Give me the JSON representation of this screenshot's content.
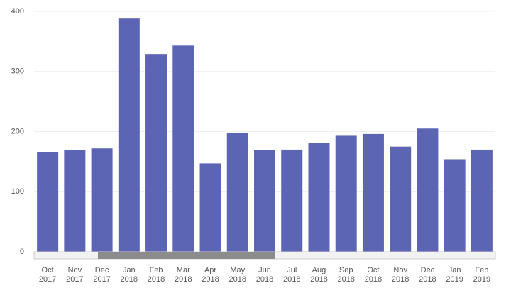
{
  "chart_data": {
    "type": "bar",
    "categories": [
      "Oct\n2017",
      "Nov\n2017",
      "Dec\n2017",
      "Jan\n2018",
      "Feb\n2018",
      "Mar\n2018",
      "Apr\n2018",
      "May\n2018",
      "Jun\n2018",
      "Jul\n2018",
      "Aug\n2018",
      "Sep\n2018",
      "Oct\n2018",
      "Nov\n2018",
      "Dec\n2018",
      "Jan\n2019",
      "Feb\n2019"
    ],
    "values": [
      166,
      169,
      172,
      388,
      329,
      343,
      147,
      198,
      169,
      170,
      181,
      193,
      196,
      175,
      205,
      154,
      170
    ],
    "color": "#5c64b4",
    "ylim": [
      0,
      400
    ],
    "yticks": [
      0,
      100,
      200,
      300,
      400
    ],
    "grid": true
  }
}
